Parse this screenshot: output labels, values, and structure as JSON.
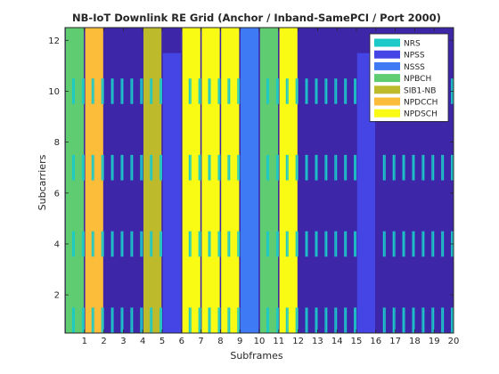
{
  "chart_data": {
    "type": "heatmap",
    "title": "NB-IoT Downlink RE Grid (Anchor / Inband-SamePCI / Port 2000)",
    "xlabel": "Subframes",
    "ylabel": "Subcarriers",
    "xlim": [
      0,
      20
    ],
    "ylim": [
      0.5,
      12.5
    ],
    "xticks": [
      "1",
      "2",
      "3",
      "4",
      "5",
      "6",
      "7",
      "8",
      "9",
      "10",
      "11",
      "12",
      "13",
      "14",
      "15",
      "16",
      "17",
      "18",
      "19",
      "20"
    ],
    "yticks": [
      "2",
      "4",
      "6",
      "8",
      "10",
      "12"
    ],
    "grid": false,
    "legend_position": "top-right",
    "colors": {
      "background": "#3e26a8",
      "axes_border": "#262626"
    },
    "legend": [
      {
        "name": "NRS",
        "color": "#1bc9c9"
      },
      {
        "name": "NPSS",
        "color": "#4545e6"
      },
      {
        "name": "NSSS",
        "color": "#3f7af5"
      },
      {
        "name": "NPBCH",
        "color": "#5fcc72"
      },
      {
        "name": "SIB1-NB",
        "color": "#bdbb2c"
      },
      {
        "name": "NPDCCH",
        "color": "#fbbd3a"
      },
      {
        "name": "NPDSCH",
        "color": "#f9fb14"
      }
    ],
    "subframe_blocks": [
      {
        "subframe": 0,
        "type": "NPBCH",
        "subcarrier_range": [
          1,
          12
        ]
      },
      {
        "subframe": 1,
        "type": "NPDCCH",
        "subcarrier_range": [
          1,
          12
        ]
      },
      {
        "subframe": 4,
        "type": "SIB1-NB",
        "subcarrier_range": [
          1,
          12
        ]
      },
      {
        "subframe": 5,
        "type": "NPSS",
        "subcarrier_range": [
          1,
          11
        ]
      },
      {
        "subframe": 6,
        "type": "NPDSCH",
        "subcarrier_range": [
          1,
          12
        ]
      },
      {
        "subframe": 7,
        "type": "NPDSCH",
        "subcarrier_range": [
          1,
          12
        ]
      },
      {
        "subframe": 8,
        "type": "NPDSCH",
        "subcarrier_range": [
          1,
          12
        ]
      },
      {
        "subframe": 9,
        "type": "NSSS",
        "subcarrier_range": [
          1,
          12
        ]
      },
      {
        "subframe": 10,
        "type": "NPBCH",
        "subcarrier_range": [
          1,
          12
        ]
      },
      {
        "subframe": 11,
        "type": "NPDSCH",
        "subcarrier_range": [
          1,
          12
        ]
      },
      {
        "subframe": 15,
        "type": "NPSS",
        "subcarrier_range": [
          1,
          11
        ]
      }
    ],
    "nrs": {
      "subcarrier_rows": [
        1,
        4,
        7,
        10
      ],
      "symbols_in_subframe": [
        5,
        6,
        12,
        13
      ],
      "subframes": [
        0,
        1,
        2,
        3,
        4,
        6,
        7,
        8,
        10,
        11,
        12,
        13,
        14,
        16,
        17,
        18,
        19
      ],
      "symbols_per_subframe": 14
    }
  }
}
